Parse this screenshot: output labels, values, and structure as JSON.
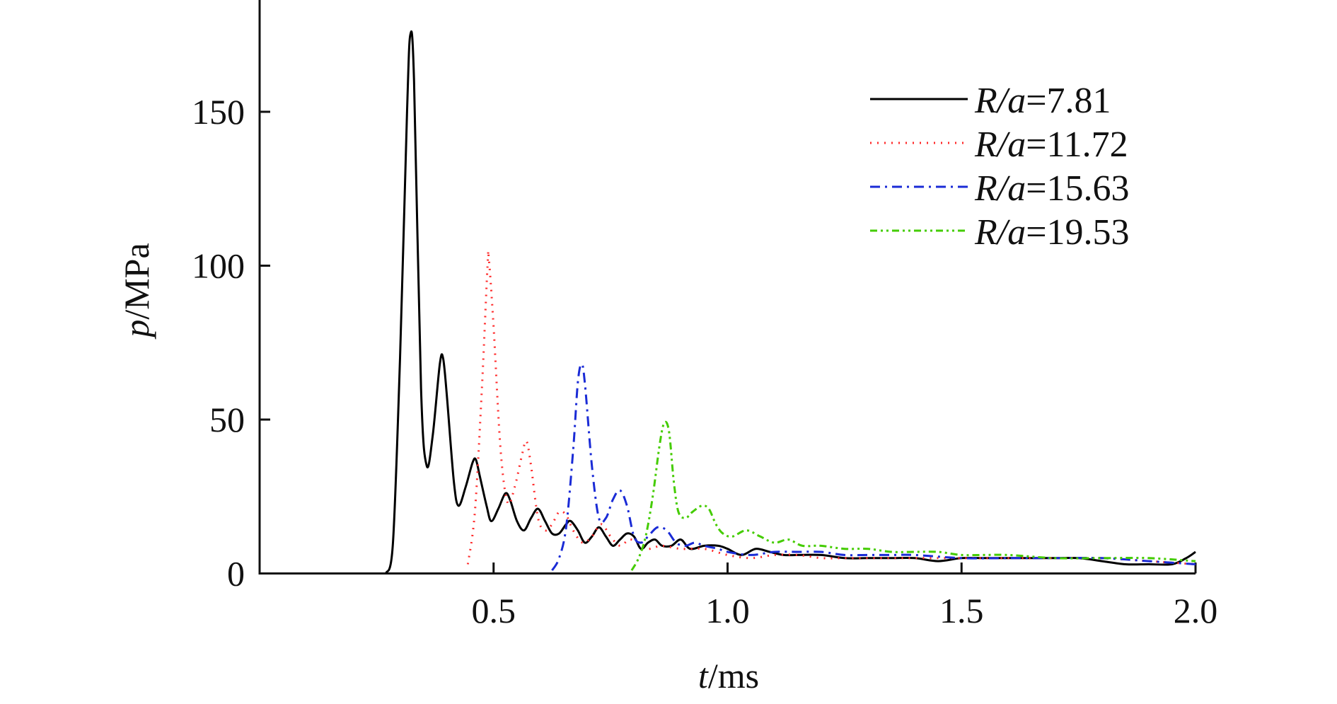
{
  "chart_data": {
    "type": "line",
    "xlabel_var": "t",
    "xlabel_unit": "/ms",
    "ylabel_var": "p",
    "ylabel_unit": "/MPa",
    "xlim": [
      0,
      2.0
    ],
    "ylim": [
      0,
      180
    ],
    "x_ticks": [
      0.5,
      1.0,
      1.5,
      2.0
    ],
    "x_tick_labels": [
      "0.5",
      "1.0",
      "1.5",
      "2.0"
    ],
    "y_ticks": [
      0,
      50,
      100,
      150
    ],
    "y_tick_labels": [
      "0",
      "50",
      "100",
      "150"
    ],
    "grid": false,
    "legend_position": "top-right",
    "series": [
      {
        "name_var": "R/a",
        "name_value": "=7.81",
        "color": "#000000",
        "dash": "solid",
        "points": [
          [
            0.27,
            0
          ],
          [
            0.285,
            10
          ],
          [
            0.3,
            70
          ],
          [
            0.315,
            150
          ],
          [
            0.322,
            175
          ],
          [
            0.33,
            160
          ],
          [
            0.345,
            60
          ],
          [
            0.357,
            35
          ],
          [
            0.37,
            45
          ],
          [
            0.385,
            68
          ],
          [
            0.392,
            70
          ],
          [
            0.4,
            58
          ],
          [
            0.415,
            30
          ],
          [
            0.425,
            22
          ],
          [
            0.44,
            28
          ],
          [
            0.455,
            36
          ],
          [
            0.462,
            37
          ],
          [
            0.47,
            32
          ],
          [
            0.485,
            22
          ],
          [
            0.495,
            17
          ],
          [
            0.51,
            21
          ],
          [
            0.525,
            26
          ],
          [
            0.535,
            24
          ],
          [
            0.55,
            17
          ],
          [
            0.565,
            14
          ],
          [
            0.58,
            18
          ],
          [
            0.595,
            21
          ],
          [
            0.61,
            17
          ],
          [
            0.625,
            13
          ],
          [
            0.64,
            13
          ],
          [
            0.655,
            16
          ],
          [
            0.665,
            17
          ],
          [
            0.68,
            14
          ],
          [
            0.695,
            10
          ],
          [
            0.71,
            12
          ],
          [
            0.725,
            15
          ],
          [
            0.74,
            12
          ],
          [
            0.755,
            9
          ],
          [
            0.77,
            11
          ],
          [
            0.785,
            13
          ],
          [
            0.8,
            12
          ],
          [
            0.815,
            8
          ],
          [
            0.83,
            10
          ],
          [
            0.845,
            11
          ],
          [
            0.86,
            9
          ],
          [
            0.88,
            9
          ],
          [
            0.9,
            11
          ],
          [
            0.92,
            8
          ],
          [
            0.95,
            9
          ],
          [
            0.98,
            9
          ],
          [
            1.0,
            8
          ],
          [
            1.03,
            6
          ],
          [
            1.06,
            8
          ],
          [
            1.09,
            7
          ],
          [
            1.12,
            6
          ],
          [
            1.15,
            6
          ],
          [
            1.2,
            6
          ],
          [
            1.25,
            5
          ],
          [
            1.3,
            5
          ],
          [
            1.35,
            5
          ],
          [
            1.4,
            5
          ],
          [
            1.45,
            4
          ],
          [
            1.5,
            5
          ],
          [
            1.55,
            5
          ],
          [
            1.6,
            5
          ],
          [
            1.65,
            5
          ],
          [
            1.7,
            5
          ],
          [
            1.75,
            5
          ],
          [
            1.8,
            4
          ],
          [
            1.85,
            3
          ],
          [
            1.9,
            3
          ],
          [
            1.95,
            3
          ],
          [
            1.98,
            5
          ],
          [
            2.0,
            7
          ]
        ]
      },
      {
        "name_var": "R/a",
        "name_value": "=11.72",
        "color": "#ff2a2a",
        "dash": "2,8",
        "points": [
          [
            0.445,
            3
          ],
          [
            0.46,
            20
          ],
          [
            0.475,
            60
          ],
          [
            0.487,
            100
          ],
          [
            0.49,
            102
          ],
          [
            0.5,
            80
          ],
          [
            0.515,
            40
          ],
          [
            0.53,
            23
          ],
          [
            0.545,
            28
          ],
          [
            0.56,
            38
          ],
          [
            0.57,
            43
          ],
          [
            0.58,
            35
          ],
          [
            0.595,
            18
          ],
          [
            0.61,
            14
          ],
          [
            0.625,
            16
          ],
          [
            0.64,
            20
          ],
          [
            0.655,
            19
          ],
          [
            0.67,
            14
          ],
          [
            0.69,
            10
          ],
          [
            0.71,
            12
          ],
          [
            0.73,
            16
          ],
          [
            0.75,
            12
          ],
          [
            0.77,
            9
          ],
          [
            0.79,
            11
          ],
          [
            0.81,
            10
          ],
          [
            0.83,
            8
          ],
          [
            0.86,
            9
          ],
          [
            0.9,
            8
          ],
          [
            0.95,
            8
          ],
          [
            1.0,
            6
          ],
          [
            1.05,
            5
          ],
          [
            1.1,
            6
          ],
          [
            1.15,
            6
          ],
          [
            1.2,
            5
          ],
          [
            1.25,
            5
          ],
          [
            1.3,
            5
          ],
          [
            1.35,
            5
          ],
          [
            1.4,
            5
          ],
          [
            1.5,
            5
          ],
          [
            1.6,
            5
          ],
          [
            1.7,
            5
          ],
          [
            1.8,
            5
          ],
          [
            1.9,
            4
          ],
          [
            2.0,
            3
          ]
        ]
      },
      {
        "name_var": "R/a",
        "name_value": "=15.63",
        "color": "#1a2bd6",
        "dash": "14,7,3,7",
        "points": [
          [
            0.625,
            1
          ],
          [
            0.64,
            5
          ],
          [
            0.655,
            15
          ],
          [
            0.67,
            40
          ],
          [
            0.68,
            62
          ],
          [
            0.688,
            68
          ],
          [
            0.695,
            62
          ],
          [
            0.71,
            35
          ],
          [
            0.725,
            18
          ],
          [
            0.74,
            18
          ],
          [
            0.755,
            24
          ],
          [
            0.77,
            27
          ],
          [
            0.785,
            22
          ],
          [
            0.8,
            12
          ],
          [
            0.815,
            10
          ],
          [
            0.83,
            12
          ],
          [
            0.85,
            15
          ],
          [
            0.87,
            14
          ],
          [
            0.89,
            10
          ],
          [
            0.91,
            9
          ],
          [
            0.93,
            10
          ],
          [
            0.95,
            9
          ],
          [
            0.98,
            8
          ],
          [
            1.0,
            7
          ],
          [
            1.05,
            6
          ],
          [
            1.1,
            7
          ],
          [
            1.15,
            7
          ],
          [
            1.2,
            7
          ],
          [
            1.25,
            6
          ],
          [
            1.3,
            6
          ],
          [
            1.35,
            6
          ],
          [
            1.4,
            6
          ],
          [
            1.5,
            5
          ],
          [
            1.6,
            5
          ],
          [
            1.7,
            5
          ],
          [
            1.8,
            5
          ],
          [
            1.9,
            4
          ],
          [
            2.0,
            3
          ]
        ]
      },
      {
        "name_var": "R/a",
        "name_value": "=19.53",
        "color": "#44cc00",
        "dash": "10,5,3,5,3,5",
        "points": [
          [
            0.795,
            1
          ],
          [
            0.81,
            5
          ],
          [
            0.825,
            12
          ],
          [
            0.84,
            25
          ],
          [
            0.855,
            42
          ],
          [
            0.865,
            49
          ],
          [
            0.875,
            46
          ],
          [
            0.885,
            30
          ],
          [
            0.895,
            20
          ],
          [
            0.91,
            18
          ],
          [
            0.925,
            20
          ],
          [
            0.945,
            22
          ],
          [
            0.96,
            21
          ],
          [
            0.975,
            16
          ],
          [
            0.99,
            13
          ],
          [
            1.01,
            12
          ],
          [
            1.04,
            14
          ],
          [
            1.07,
            12
          ],
          [
            1.1,
            10
          ],
          [
            1.13,
            11
          ],
          [
            1.16,
            9
          ],
          [
            1.2,
            9
          ],
          [
            1.25,
            8
          ],
          [
            1.3,
            8
          ],
          [
            1.35,
            7
          ],
          [
            1.4,
            7
          ],
          [
            1.45,
            7
          ],
          [
            1.5,
            6
          ],
          [
            1.55,
            6
          ],
          [
            1.6,
            6
          ],
          [
            1.7,
            5
          ],
          [
            1.8,
            5
          ],
          [
            1.9,
            5
          ],
          [
            2.0,
            4
          ]
        ]
      }
    ]
  }
}
